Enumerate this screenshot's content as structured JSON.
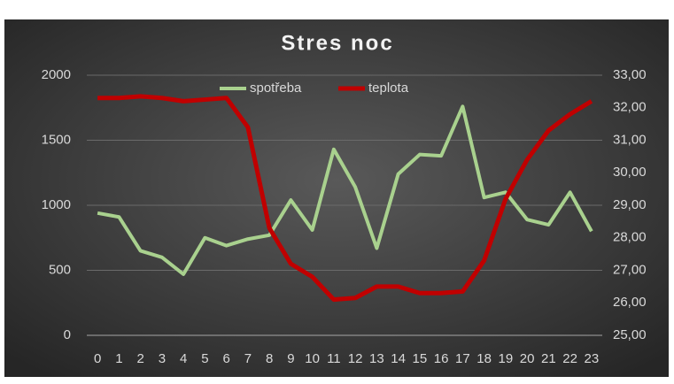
{
  "chart_data": {
    "type": "line",
    "title": "Stres noc",
    "categories": [
      "0",
      "1",
      "2",
      "3",
      "4",
      "5",
      "6",
      "7",
      "8",
      "9",
      "10",
      "11",
      "12",
      "13",
      "14",
      "15",
      "16",
      "17",
      "18",
      "19",
      "20",
      "21",
      "22",
      "23"
    ],
    "series": [
      {
        "name": "spotřeba",
        "color": "#a9d18e",
        "values": [
          940,
          910,
          650,
          600,
          470,
          750,
          690,
          740,
          770,
          1040,
          810,
          1430,
          1140,
          670,
          1240,
          1390,
          1380,
          1760,
          1060,
          1100,
          890,
          850,
          1100,
          800
        ]
      },
      {
        "name": "teplota",
        "color": "#c00000",
        "axis": "y2",
        "values": [
          32.3,
          32.3,
          32.35,
          32.3,
          32.2,
          32.25,
          32.3,
          31.4,
          28.3,
          27.2,
          26.8,
          26.1,
          26.15,
          26.5,
          26.5,
          26.3,
          26.3,
          26.35,
          27.3,
          29.2,
          30.4,
          31.3,
          31.8,
          32.2
        ]
      }
    ],
    "ylim": [
      0,
      2000
    ],
    "yticks": [
      0,
      500,
      1000,
      1500,
      2000
    ],
    "y2lim": [
      25,
      33
    ],
    "y2ticks": [
      {
        "value": 25,
        "label": "25,00"
      },
      {
        "value": 26,
        "label": "26,00"
      },
      {
        "value": 27,
        "label": "27,00"
      },
      {
        "value": 28,
        "label": "28,00"
      },
      {
        "value": 29,
        "label": "29,00"
      },
      {
        "value": 30,
        "label": "30,00"
      },
      {
        "value": 31,
        "label": "31,00"
      },
      {
        "value": 32,
        "label": "32,00"
      },
      {
        "value": 33,
        "label": "33,00"
      }
    ],
    "grid": true,
    "legend": "top"
  }
}
